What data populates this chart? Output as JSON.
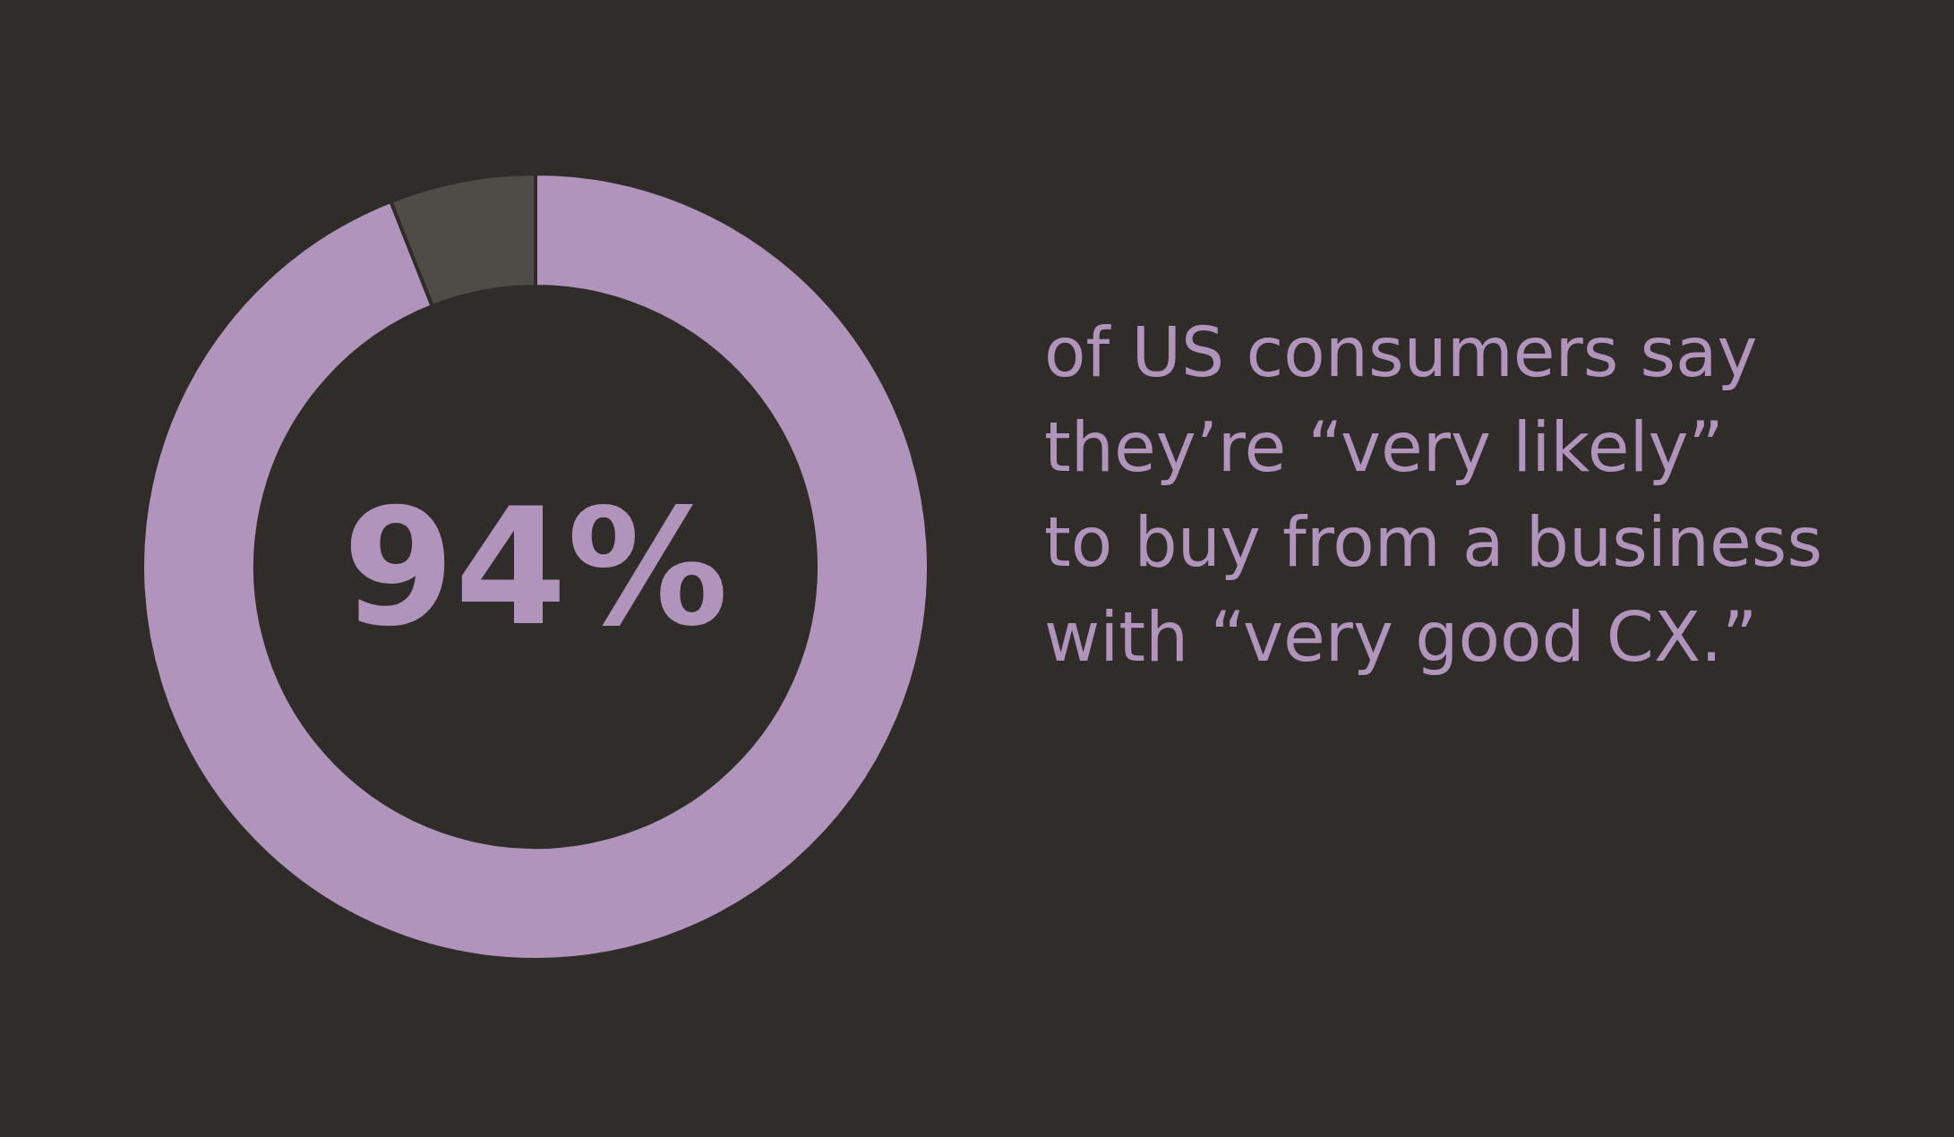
{
  "chart_data": {
    "type": "donut",
    "categories": [
      null,
      null
    ],
    "values": [
      94,
      6
    ],
    "colors": [
      "#b194bc",
      "#4f4b47"
    ],
    "value_labels": [
      "94%",
      null
    ],
    "annotations": [
      "of US consumers say they’re “very likely” to buy from a business with “very good CX.”"
    ]
  }
}
